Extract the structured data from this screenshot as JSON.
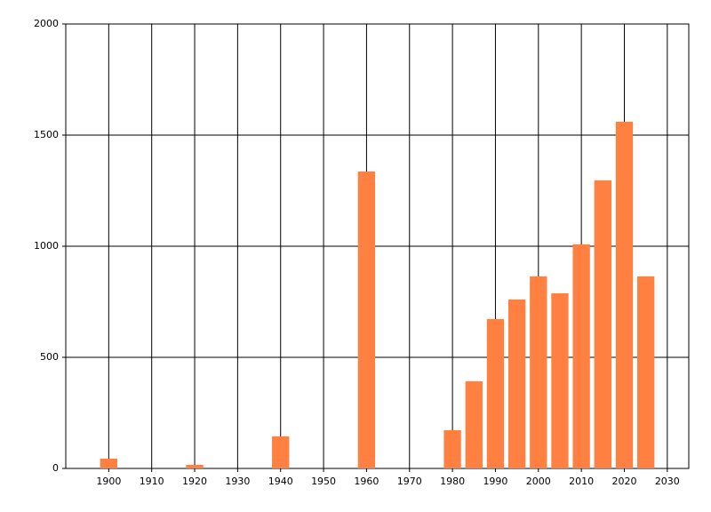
{
  "chart_data": {
    "type": "bar",
    "x": [
      1900,
      1920,
      1940,
      1960,
      1980,
      1985,
      1990,
      1995,
      2000,
      2005,
      2010,
      2015,
      2020,
      2025
    ],
    "values": [
      44,
      16,
      144,
      1336,
      172,
      392,
      672,
      760,
      864,
      788,
      1008,
      1296,
      1560,
      864
    ],
    "color": "#ff8040",
    "xlim": [
      1890,
      2035
    ],
    "xticks": [
      1900,
      1910,
      1920,
      1930,
      1940,
      1950,
      1960,
      1970,
      1980,
      1990,
      2000,
      2010,
      2020,
      2030
    ],
    "ylim": [
      0,
      2000
    ],
    "yticks": [
      0,
      500,
      1000,
      1500,
      2000
    ],
    "grid": true
  }
}
